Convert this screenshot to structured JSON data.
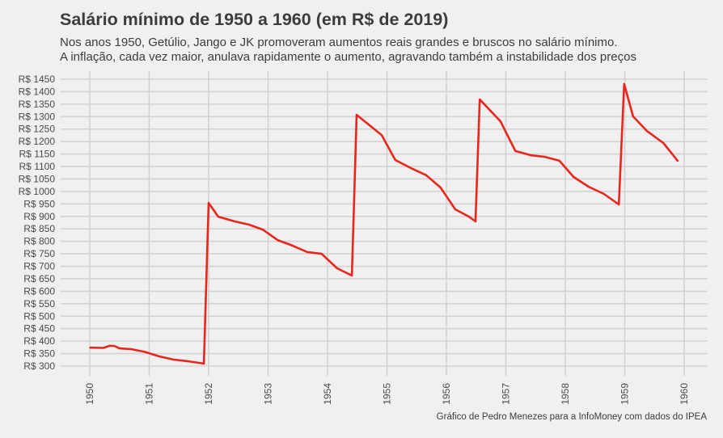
{
  "chart_data": {
    "type": "line",
    "title": "Salário mínimo de 1950 a 1960 (em R$ de 2019)",
    "subtitle": [
      "Nos anos 1950, Getúlio, Jango e JK promoveram aumentos reais grandes e bruscos no salário mínimo.",
      "A inflação, cada vez maior, anulava rapidamente o aumento, agravando também a instabilidade dos preços"
    ],
    "caption": "Gráfico de Pedro Menezes para a InfoMoney com dados do IPEA",
    "xlabel": "",
    "ylabel": "",
    "xlim": [
      1950,
      1960
    ],
    "ylim": [
      300,
      1450
    ],
    "grid": true,
    "x_ticks": [
      "1950",
      "1951",
      "1952",
      "1953",
      "1954",
      "1955",
      "1956",
      "1957",
      "1958",
      "1959",
      "1960"
    ],
    "y_ticks": [
      "R$ 300",
      "R$ 350",
      "R$ 400",
      "R$ 450",
      "R$ 500",
      "R$ 550",
      "R$ 600",
      "R$ 650",
      "R$ 700",
      "R$ 750",
      "R$ 800",
      "R$ 850",
      "R$ 900",
      "R$ 950",
      "R$ 1000",
      "R$ 1050",
      "R$ 1100",
      "R$ 1150",
      "R$ 1200",
      "R$ 1250",
      "R$ 1300",
      "R$ 1350",
      "R$ 1400",
      "R$ 1450"
    ],
    "line_color": "#e8261c",
    "series": [
      {
        "name": "Salário mínimo",
        "x": [
          1950.01,
          1950.23,
          1950.33,
          1950.41,
          1950.5,
          1950.69,
          1950.91,
          1951.17,
          1951.41,
          1951.66,
          1951.92,
          1952.0,
          1952.16,
          1952.44,
          1952.68,
          1952.91,
          1953.16,
          1953.41,
          1953.66,
          1953.9,
          1954.16,
          1954.41,
          1954.49,
          1954.91,
          1955.14,
          1955.4,
          1955.66,
          1955.9,
          1956.15,
          1956.38,
          1956.49,
          1956.56,
          1956.91,
          1957.16,
          1957.43,
          1957.65,
          1957.9,
          1958.14,
          1958.39,
          1958.65,
          1958.9,
          1958.99,
          1959.14,
          1959.37,
          1959.65,
          1959.89
        ],
        "y": [
          374,
          373,
          381,
          381,
          371,
          368,
          358,
          339,
          326,
          319,
          310,
          954,
          899,
          880,
          867,
          847,
          805,
          783,
          757,
          750,
          692,
          663,
          1307,
          1226,
          1126,
          1094,
          1065,
          1016,
          928,
          899,
          880,
          1369,
          1281,
          1162,
          1145,
          1139,
          1123,
          1058,
          1019,
          990,
          948,
          1431,
          1301,
          1243,
          1194,
          1123
        ]
      }
    ]
  }
}
